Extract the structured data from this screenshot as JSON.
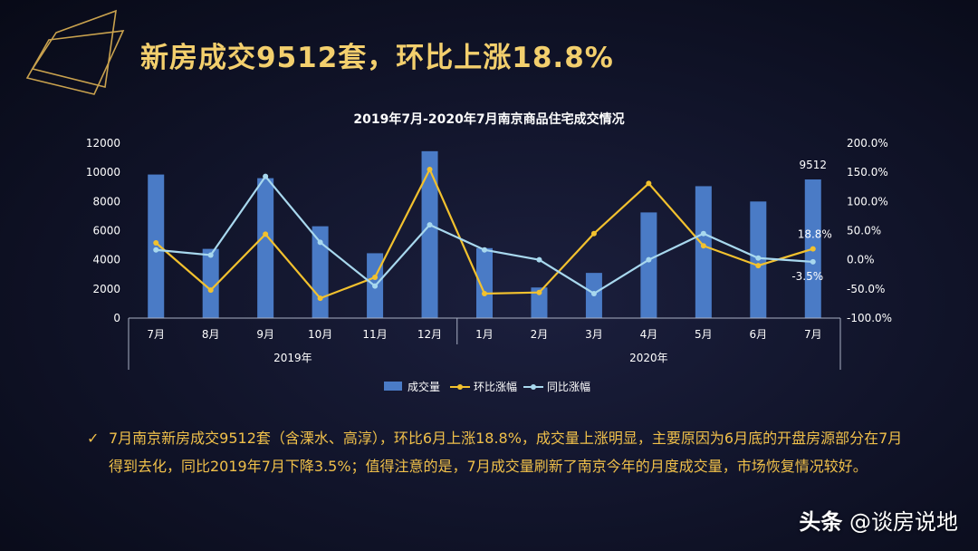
{
  "slide": {
    "title": "新房成交9512套，环比上涨18.8%",
    "note": "7月南京新房成交9512套（含溧水、高淳），环比6月上涨18.8%，成交量上涨明显，主要原因为6月底的开盘房源部分在7月得到去化，同比2019年7月下降3.5%；值得注意的是，7月成交量刷新了南京今年的月度成交量，市场恢复情况较好。",
    "check_icon": "✓",
    "watermark_prefix": "头条",
    "watermark_handle": "@谈房说地"
  },
  "chart_data": {
    "type": "bar+line",
    "title": "2019年7月-2020年7月南京商品住宅成交情况",
    "categories": [
      "7月",
      "8月",
      "9月",
      "10月",
      "11月",
      "12月",
      "1月",
      "2月",
      "3月",
      "4月",
      "5月",
      "6月",
      "7月"
    ],
    "year_groups": [
      {
        "label": "2019年",
        "count": 6
      },
      {
        "label": "2020年",
        "count": 7
      }
    ],
    "y_left": {
      "min": 0,
      "max": 12000,
      "ticks": [
        "0",
        "2000",
        "4000",
        "6000",
        "8000",
        "10000",
        "12000"
      ]
    },
    "y_right": {
      "min": -100,
      "max": 200,
      "ticks": [
        "-100.0%",
        "-50.0%",
        "0.0%",
        "50.0%",
        "100.0%",
        "150.0%",
        "200.0%"
      ]
    },
    "series": [
      {
        "name": "成交量",
        "kind": "bar",
        "axis": "left",
        "color": "#4a7bc6",
        "values": [
          9850,
          4750,
          9600,
          6300,
          4450,
          11450,
          4800,
          2100,
          3100,
          7250,
          9050,
          8000,
          9512
        ]
      },
      {
        "name": "环比涨幅",
        "kind": "line",
        "axis": "right",
        "color": "#f2c12e",
        "values": [
          29,
          -52,
          44,
          -66,
          -30,
          155,
          -58,
          -56,
          45,
          131,
          24,
          -10,
          18.8
        ]
      },
      {
        "name": "同比涨幅",
        "kind": "line",
        "axis": "right",
        "color": "#a8d8ee",
        "values": [
          17,
          8,
          143,
          30,
          -45,
          60,
          17,
          0,
          -58,
          0,
          45,
          3,
          -3.5
        ]
      }
    ],
    "data_labels": [
      {
        "series": 0,
        "index": 12,
        "text": "9512"
      },
      {
        "series": 1,
        "index": 12,
        "text": "18.8%"
      },
      {
        "series": 2,
        "index": 12,
        "text": "-3.5%"
      }
    ],
    "legend_position": "bottom",
    "grid": false
  }
}
